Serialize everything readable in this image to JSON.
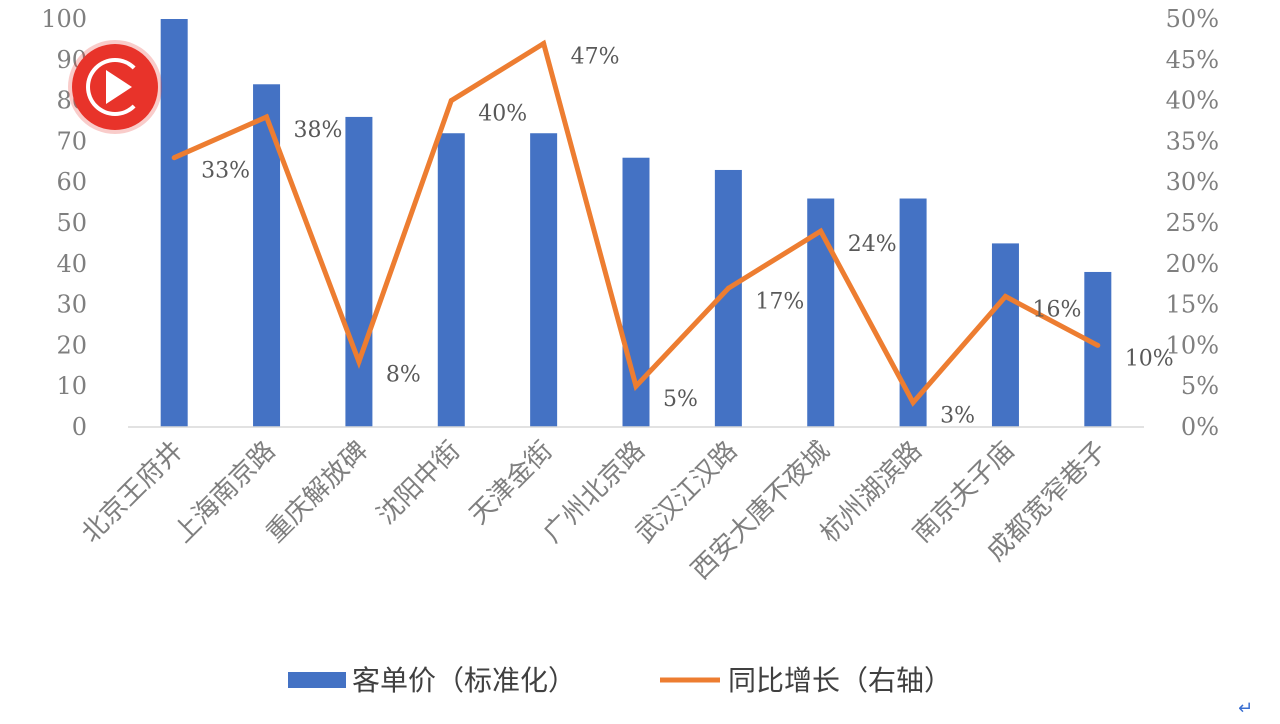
{
  "chart_data": {
    "type": "bar",
    "categories": [
      "北京王府井",
      "上海南京路",
      "重庆解放碑",
      "沈阳中街",
      "天津金街",
      "广州北京路",
      "武汉江汉路",
      "西安大唐不夜城",
      "杭州湖滨路",
      "南京夫子庙",
      "成都宽窄巷子"
    ],
    "series": [
      {
        "name": "客单价（标准化）",
        "type": "bar",
        "axis": "left",
        "color": "#4472c4",
        "values": [
          100,
          84,
          76,
          72,
          72,
          66,
          63,
          56,
          56,
          45,
          38
        ]
      },
      {
        "name": "同比增长（右轴）",
        "type": "line",
        "axis": "right",
        "color": "#ed7d31",
        "values": [
          33,
          38,
          8,
          40,
          47,
          5,
          17,
          24,
          3,
          16,
          10
        ],
        "labels": [
          "33%",
          "38%",
          "8%",
          "40%",
          "47%",
          "5%",
          "17%",
          "24%",
          "3%",
          "16%",
          "10%"
        ]
      }
    ],
    "ylim_left": [
      0,
      100
    ],
    "yticks_left": [
      "0",
      "10",
      "20",
      "30",
      "40",
      "50",
      "60",
      "70",
      "80",
      "90",
      "100"
    ],
    "ylim_right": [
      0,
      50
    ],
    "yticks_right": [
      "0%",
      "5%",
      "10%",
      "15%",
      "20%",
      "25%",
      "30%",
      "35%",
      "40%",
      "45%",
      "50%"
    ],
    "grid": false,
    "legend_position": "bottom",
    "title": "",
    "xlabel": "",
    "ylabel": ""
  },
  "overlay": {
    "logo_icon": "play-circle-logo-icon",
    "logo_color": "#e8332a",
    "corner_icon": "return-arrow-icon"
  }
}
